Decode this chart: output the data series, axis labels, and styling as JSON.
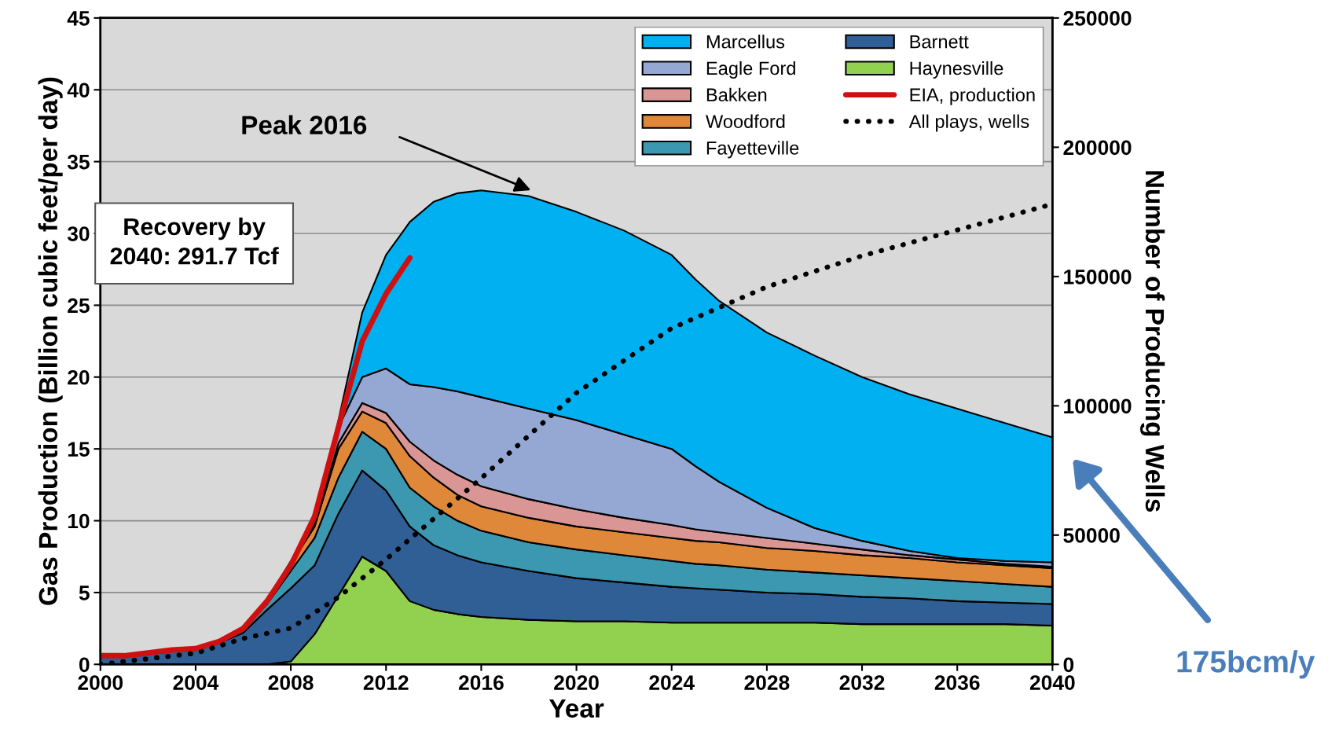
{
  "chart_data": {
    "type": "area",
    "stacked": true,
    "xlabel": "Year",
    "ylabel": "Gas Production (Billion cubic feet/per day)",
    "y2label": "Number of Producing Wells",
    "x": [
      2000,
      2002,
      2004,
      2005,
      2006,
      2007,
      2008,
      2009,
      2010,
      2011,
      2012,
      2013,
      2014,
      2015,
      2016,
      2018,
      2020,
      2022,
      2024,
      2025,
      2026,
      2028,
      2030,
      2032,
      2034,
      2036,
      2038,
      2040
    ],
    "series": [
      {
        "name": "Haynesville",
        "color": "#92d050",
        "values": [
          0,
          0,
          0,
          0,
          0,
          0,
          0.2,
          2.1,
          4.8,
          7.5,
          6.5,
          4.4,
          3.8,
          3.5,
          3.3,
          3.1,
          3.0,
          3.0,
          2.9,
          2.9,
          2.9,
          2.9,
          2.9,
          2.8,
          2.8,
          2.8,
          2.8,
          2.7
        ]
      },
      {
        "name": "Barnett",
        "color": "#2f5f95",
        "values": [
          0.5,
          0.7,
          1.1,
          1.5,
          2.2,
          3.8,
          5.1,
          4.8,
          5.7,
          6.0,
          5.6,
          5.2,
          4.5,
          4.1,
          3.8,
          3.4,
          3.0,
          2.7,
          2.5,
          2.4,
          2.3,
          2.1,
          2.0,
          1.9,
          1.8,
          1.6,
          1.5,
          1.5
        ]
      },
      {
        "name": "Fayetteville",
        "color": "#3c97b0",
        "values": [
          0,
          0,
          0,
          0.1,
          0.2,
          0.4,
          1.2,
          1.9,
          2.5,
          2.7,
          2.9,
          2.7,
          2.7,
          2.4,
          2.2,
          2.0,
          2.0,
          1.9,
          1.8,
          1.7,
          1.7,
          1.6,
          1.5,
          1.5,
          1.4,
          1.4,
          1.3,
          1.2
        ]
      },
      {
        "name": "Woodford",
        "color": "#e0883a",
        "values": [
          0,
          0,
          0,
          0,
          0.1,
          0.2,
          0.5,
          0.8,
          2.0,
          1.4,
          1.8,
          2.2,
          2.0,
          1.8,
          1.7,
          1.7,
          1.6,
          1.6,
          1.6,
          1.6,
          1.6,
          1.5,
          1.5,
          1.4,
          1.4,
          1.3,
          1.3,
          1.3
        ]
      },
      {
        "name": "Bakken",
        "color": "#d99694",
        "values": [
          0,
          0,
          0,
          0,
          0,
          0,
          0,
          0.1,
          0.4,
          0.6,
          0.7,
          1.0,
          1.2,
          1.4,
          1.4,
          1.3,
          1.2,
          1.0,
          0.9,
          0.8,
          0.7,
          0.7,
          0.5,
          0.4,
          0.2,
          0.2,
          0.1,
          0.1
        ]
      },
      {
        "name": "Eagle Ford",
        "color": "#95a8d4",
        "values": [
          0,
          0,
          0,
          0,
          0,
          0,
          0,
          0.1,
          1.1,
          1.8,
          3.1,
          4.0,
          5.1,
          5.8,
          6.2,
          6.3,
          6.2,
          5.8,
          5.3,
          4.4,
          3.5,
          2.1,
          1.1,
          0.6,
          0.3,
          0.1,
          0.2,
          0.3
        ]
      },
      {
        "name": "Marcellus",
        "color": "#00b0f0",
        "values": [
          0,
          0,
          0,
          0,
          0,
          0.1,
          0.2,
          0.2,
          0.5,
          4.5,
          7.9,
          11.3,
          12.9,
          13.8,
          14.4,
          14.8,
          14.5,
          14.2,
          13.5,
          13.0,
          12.6,
          12.2,
          12.0,
          11.4,
          10.9,
          10.4,
          9.6,
          8.7
        ]
      },
      {
        "name": "EIA, production",
        "type": "line",
        "color": "#d01010",
        "line_style": "solid",
        "x": [
          2000,
          2001,
          2002,
          2003,
          2004,
          2005,
          2006,
          2007,
          2008,
          2009,
          2010,
          2011,
          2012,
          2013
        ],
        "values": [
          0.6,
          0.6,
          0.8,
          1.0,
          1.1,
          1.6,
          2.5,
          4.4,
          6.9,
          10.3,
          16.5,
          22.5,
          25.8,
          28.3
        ]
      },
      {
        "name": "All plays, wells",
        "type": "line",
        "axis": "y2",
        "color": "#000000",
        "line_style": "dotted",
        "x": [
          2000,
          2004,
          2006,
          2008,
          2010,
          2012,
          2016,
          2020,
          2024,
          2028,
          2032,
          2036,
          2040
        ],
        "values": [
          0,
          4300,
          10000,
          14000,
          26000,
          40600,
          72000,
          105000,
          130000,
          146000,
          158000,
          168000,
          178000
        ]
      }
    ],
    "xlim": [
      2000,
      2040
    ],
    "xticks": [
      2000,
      2004,
      2008,
      2012,
      2016,
      2020,
      2024,
      2028,
      2032,
      2036,
      2040
    ],
    "ylim": [
      0,
      45
    ],
    "yticks": [
      0,
      5,
      10,
      15,
      20,
      25,
      30,
      35,
      40,
      45
    ],
    "y2lim": [
      0,
      250000
    ],
    "y2ticks": [
      0,
      50000,
      100000,
      150000,
      200000,
      250000
    ],
    "grid": "y",
    "legend": "top right",
    "annotations": [
      "Peak 2016",
      "Recovery by\n2040: 291.7 Tcf",
      "175bcm/y"
    ]
  }
}
